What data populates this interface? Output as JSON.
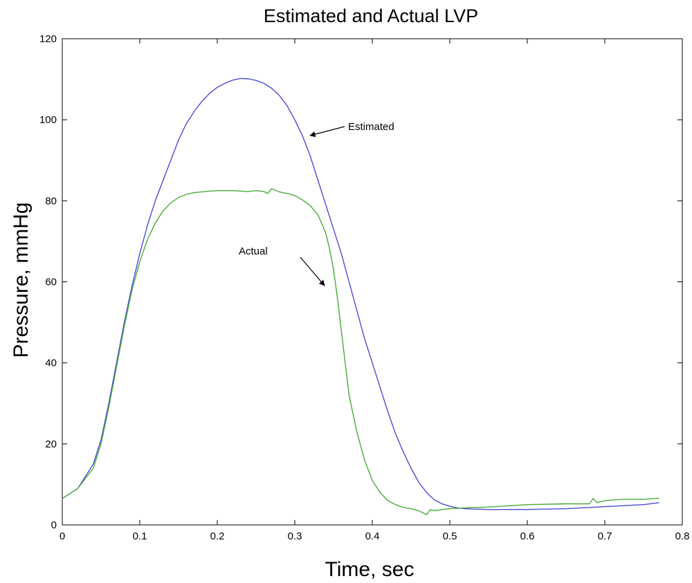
{
  "chart_data": {
    "type": "line",
    "title": "Estimated and Actual LVP",
    "xlabel": "Time, sec",
    "ylabel": "Pressure, mmHg",
    "xlim": [
      0,
      0.8
    ],
    "ylim": [
      0,
      120
    ],
    "xticks": [
      0,
      0.1,
      0.2,
      0.3,
      0.4,
      0.5,
      0.6,
      0.7,
      0.8
    ],
    "xtick_labels": [
      "0",
      "0.1",
      "0.2",
      "0.3",
      "0.4",
      "0.5",
      "0.6",
      "0.7",
      "0.8"
    ],
    "yticks": [
      0,
      20,
      40,
      60,
      80,
      100,
      120
    ],
    "ytick_labels": [
      "0",
      "20",
      "40",
      "60",
      "80",
      "100",
      "120"
    ],
    "grid": false,
    "series": [
      {
        "key": "estimated",
        "color": "#4a4ad6",
        "x": [
          0,
          0.02,
          0.04,
          0.05,
          0.06,
          0.07,
          0.08,
          0.09,
          0.1,
          0.11,
          0.12,
          0.13,
          0.14,
          0.15,
          0.16,
          0.17,
          0.18,
          0.19,
          0.2,
          0.21,
          0.22,
          0.23,
          0.24,
          0.25,
          0.26,
          0.27,
          0.28,
          0.29,
          0.3,
          0.31,
          0.32,
          0.33,
          0.34,
          0.35,
          0.36,
          0.37,
          0.38,
          0.39,
          0.4,
          0.41,
          0.42,
          0.43,
          0.44,
          0.45,
          0.46,
          0.47,
          0.48,
          0.49,
          0.5,
          0.51,
          0.52,
          0.53,
          0.55,
          0.6,
          0.65,
          0.7,
          0.75,
          0.77
        ],
        "y": [
          6.5,
          9,
          15,
          21,
          30,
          40,
          50,
          59,
          67,
          74,
          80,
          85,
          90,
          95,
          99,
          102,
          104.5,
          106.5,
          108,
          109,
          109.8,
          110.2,
          110.1,
          109.7,
          109,
          107.8,
          106,
          103.5,
          100,
          96,
          91,
          85,
          79,
          73,
          67,
          60,
          53,
          46,
          40,
          34,
          28,
          22.5,
          18,
          14,
          10.5,
          8,
          6.2,
          5.2,
          4.6,
          4.2,
          4,
          3.9,
          3.8,
          3.8,
          4,
          4.5,
          5,
          5.5
        ]
      },
      {
        "key": "actual",
        "color": "#4aaa3a",
        "x": [
          0,
          0.02,
          0.04,
          0.05,
          0.06,
          0.07,
          0.08,
          0.09,
          0.1,
          0.11,
          0.12,
          0.13,
          0.14,
          0.15,
          0.16,
          0.17,
          0.18,
          0.19,
          0.2,
          0.21,
          0.22,
          0.23,
          0.24,
          0.25,
          0.26,
          0.265,
          0.27,
          0.275,
          0.28,
          0.29,
          0.3,
          0.31,
          0.32,
          0.33,
          0.34,
          0.345,
          0.35,
          0.355,
          0.36,
          0.365,
          0.37,
          0.38,
          0.39,
          0.4,
          0.41,
          0.42,
          0.43,
          0.44,
          0.45,
          0.46,
          0.465,
          0.47,
          0.475,
          0.48,
          0.49,
          0.5,
          0.52,
          0.55,
          0.6,
          0.65,
          0.68,
          0.685,
          0.69,
          0.7,
          0.72,
          0.75,
          0.77
        ],
        "y": [
          6.5,
          9,
          14,
          20,
          29,
          39,
          49,
          58,
          65,
          70.5,
          74.5,
          77.5,
          79.5,
          80.8,
          81.6,
          82,
          82.2,
          82.4,
          82.5,
          82.5,
          82.5,
          82.4,
          82.3,
          82.5,
          82.3,
          81.8,
          83,
          82.6,
          82.2,
          81.8,
          81.3,
          80.2,
          78.8,
          76.5,
          72,
          68,
          63,
          56,
          48,
          40,
          32,
          23,
          16,
          11,
          8,
          6,
          5,
          4.3,
          4,
          3.5,
          3,
          2.5,
          3.8,
          3.5,
          3.8,
          4,
          4.2,
          4.4,
          5,
          5.2,
          5.2,
          6.5,
          5.5,
          6,
          6.3,
          6.3,
          6.6
        ]
      }
    ],
    "annotations": [
      {
        "key": "estimated",
        "text": "Estimated",
        "arrow_to": [
          0.32,
          97
        ]
      },
      {
        "key": "actual",
        "text": "Actual",
        "arrow_to": [
          0.34,
          59
        ]
      }
    ]
  }
}
